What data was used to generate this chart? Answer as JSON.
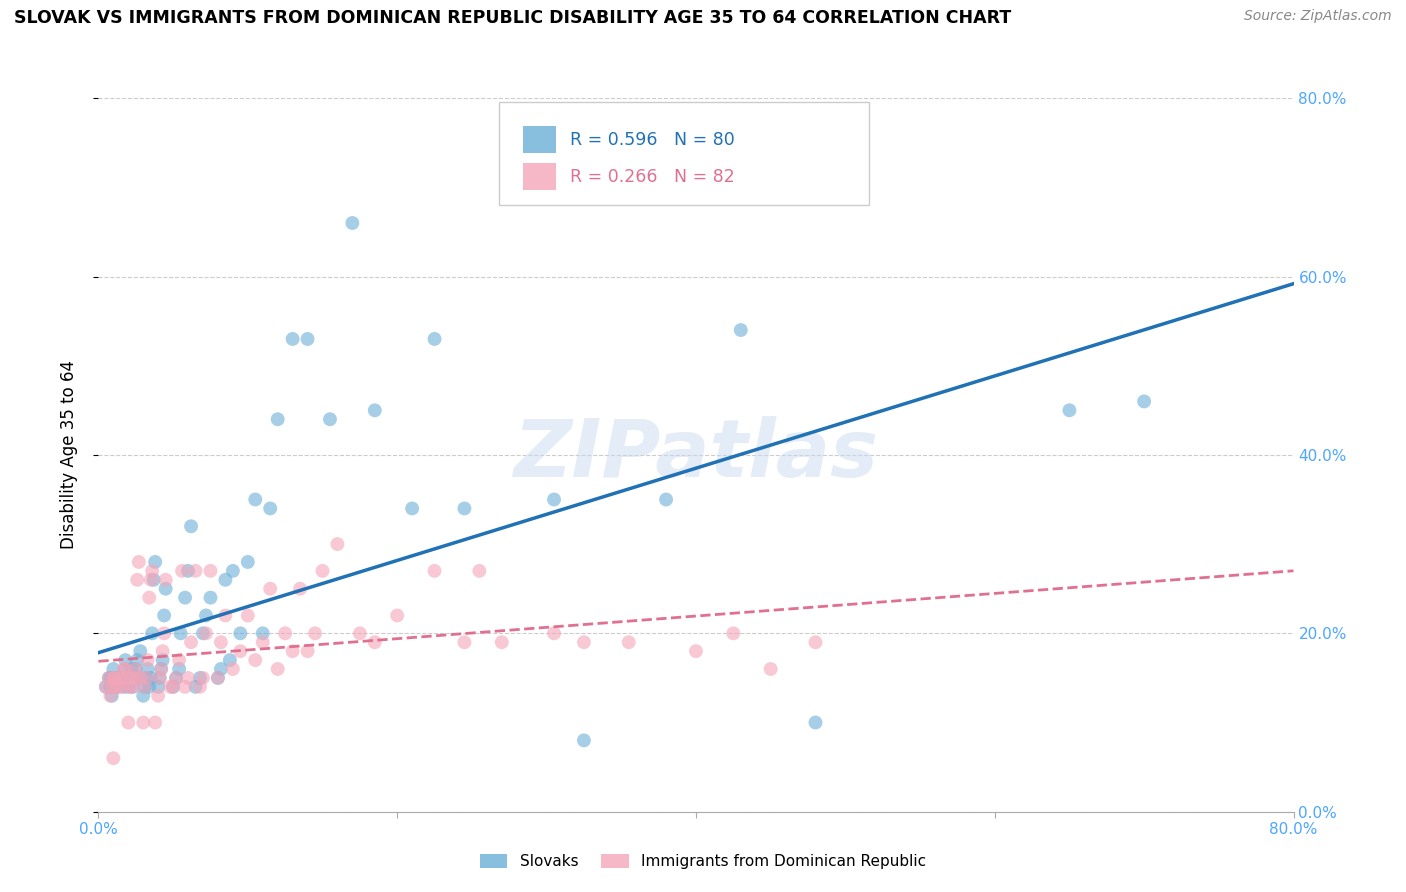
{
  "title": "SLOVAK VS IMMIGRANTS FROM DOMINICAN REPUBLIC DISABILITY AGE 35 TO 64 CORRELATION CHART",
  "source": "Source: ZipAtlas.com",
  "ylabel_label": "Disability Age 35 to 64",
  "legend_label_slovak": "Slovaks",
  "legend_label_dominican": "Immigrants from Dominican Republic",
  "r_slovak": 0.596,
  "n_slovak": 80,
  "r_dominican": 0.266,
  "n_dominican": 82,
  "blue_color": "#6baed6",
  "pink_color": "#f4a5b8",
  "blue_line_color": "#2171b5",
  "pink_line_color": "#e07090",
  "axis_tick_color": "#4da6ff",
  "watermark_color": "#c8daf0",
  "xlim": [
    0.0,
    0.8
  ],
  "ylim": [
    0.0,
    0.8
  ],
  "blue_scatter_x": [
    0.005,
    0.007,
    0.008,
    0.008,
    0.009,
    0.01,
    0.01,
    0.01,
    0.012,
    0.012,
    0.013,
    0.014,
    0.015,
    0.016,
    0.017,
    0.018,
    0.018,
    0.019,
    0.02,
    0.021,
    0.022,
    0.023,
    0.024,
    0.025,
    0.026,
    0.027,
    0.028,
    0.03,
    0.031,
    0.032,
    0.033,
    0.034,
    0.035,
    0.036,
    0.037,
    0.038,
    0.04,
    0.041,
    0.042,
    0.043,
    0.044,
    0.045,
    0.05,
    0.052,
    0.054,
    0.055,
    0.058,
    0.06,
    0.062,
    0.065,
    0.068,
    0.07,
    0.072,
    0.075,
    0.08,
    0.082,
    0.085,
    0.088,
    0.09,
    0.095,
    0.1,
    0.105,
    0.11,
    0.115,
    0.12,
    0.13,
    0.14,
    0.155,
    0.17,
    0.185,
    0.21,
    0.225,
    0.245,
    0.305,
    0.325,
    0.38,
    0.43,
    0.48,
    0.65,
    0.7
  ],
  "blue_scatter_y": [
    0.14,
    0.15,
    0.14,
    0.15,
    0.13,
    0.14,
    0.15,
    0.16,
    0.14,
    0.15,
    0.14,
    0.15,
    0.15,
    0.15,
    0.14,
    0.16,
    0.17,
    0.15,
    0.14,
    0.15,
    0.16,
    0.14,
    0.15,
    0.16,
    0.17,
    0.15,
    0.18,
    0.13,
    0.14,
    0.15,
    0.16,
    0.14,
    0.15,
    0.2,
    0.26,
    0.28,
    0.14,
    0.15,
    0.16,
    0.17,
    0.22,
    0.25,
    0.14,
    0.15,
    0.16,
    0.2,
    0.24,
    0.27,
    0.32,
    0.14,
    0.15,
    0.2,
    0.22,
    0.24,
    0.15,
    0.16,
    0.26,
    0.17,
    0.27,
    0.2,
    0.28,
    0.35,
    0.2,
    0.34,
    0.44,
    0.53,
    0.53,
    0.44,
    0.66,
    0.45,
    0.34,
    0.53,
    0.34,
    0.35,
    0.08,
    0.35,
    0.54,
    0.1,
    0.45,
    0.46
  ],
  "pink_scatter_x": [
    0.005,
    0.007,
    0.008,
    0.009,
    0.01,
    0.01,
    0.011,
    0.012,
    0.013,
    0.014,
    0.015,
    0.016,
    0.017,
    0.018,
    0.019,
    0.02,
    0.021,
    0.022,
    0.023,
    0.024,
    0.025,
    0.026,
    0.027,
    0.028,
    0.03,
    0.031,
    0.032,
    0.033,
    0.034,
    0.035,
    0.036,
    0.038,
    0.04,
    0.041,
    0.042,
    0.043,
    0.044,
    0.045,
    0.048,
    0.05,
    0.052,
    0.054,
    0.056,
    0.058,
    0.06,
    0.062,
    0.065,
    0.068,
    0.07,
    0.072,
    0.075,
    0.08,
    0.082,
    0.085,
    0.09,
    0.095,
    0.1,
    0.105,
    0.11,
    0.115,
    0.12,
    0.125,
    0.13,
    0.135,
    0.14,
    0.145,
    0.15,
    0.16,
    0.175,
    0.185,
    0.2,
    0.225,
    0.245,
    0.255,
    0.27,
    0.305,
    0.325,
    0.355,
    0.4,
    0.425,
    0.45,
    0.48
  ],
  "pink_scatter_y": [
    0.14,
    0.15,
    0.13,
    0.14,
    0.15,
    0.06,
    0.15,
    0.14,
    0.14,
    0.15,
    0.15,
    0.14,
    0.16,
    0.16,
    0.15,
    0.1,
    0.14,
    0.15,
    0.14,
    0.15,
    0.16,
    0.26,
    0.28,
    0.15,
    0.1,
    0.14,
    0.15,
    0.17,
    0.24,
    0.26,
    0.27,
    0.1,
    0.13,
    0.15,
    0.16,
    0.18,
    0.2,
    0.26,
    0.14,
    0.14,
    0.15,
    0.17,
    0.27,
    0.14,
    0.15,
    0.19,
    0.27,
    0.14,
    0.15,
    0.2,
    0.27,
    0.15,
    0.19,
    0.22,
    0.16,
    0.18,
    0.22,
    0.17,
    0.19,
    0.25,
    0.16,
    0.2,
    0.18,
    0.25,
    0.18,
    0.2,
    0.27,
    0.3,
    0.2,
    0.19,
    0.22,
    0.27,
    0.19,
    0.27,
    0.19,
    0.2,
    0.19,
    0.19,
    0.18,
    0.2,
    0.16,
    0.19
  ]
}
